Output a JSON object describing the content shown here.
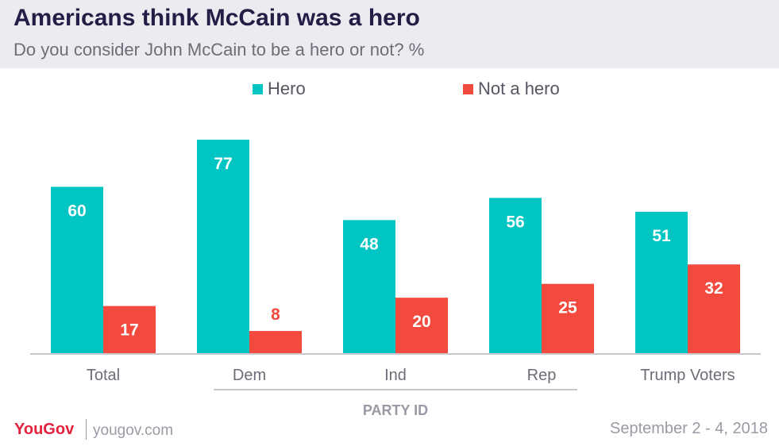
{
  "header": {
    "title": "Americans think McCain was a hero",
    "subtitle": "Do you consider John McCain to be a hero or not? %"
  },
  "chart_data": {
    "type": "bar",
    "title": "Americans think McCain was a hero",
    "subtitle": "Do you consider John McCain to be a hero or not? %",
    "categories": [
      "Total",
      "Dem",
      "Ind",
      "Rep",
      "Trump Voters"
    ],
    "series": [
      {
        "name": "Hero",
        "color": "#00c5c2",
        "values": [
          60,
          77,
          48,
          56,
          51
        ]
      },
      {
        "name": "Not a hero",
        "color": "#f24a3f",
        "values": [
          17,
          8,
          20,
          25,
          32
        ]
      }
    ],
    "group_label": "PARTY ID",
    "group_categories": [
      "Dem",
      "Ind",
      "Rep"
    ],
    "ylim": [
      0,
      80
    ],
    "grid": false,
    "legend": "top-center"
  },
  "footer": {
    "brand": "YouGov",
    "site": "yougov.com",
    "date": "September 2 - 4, 2018"
  }
}
